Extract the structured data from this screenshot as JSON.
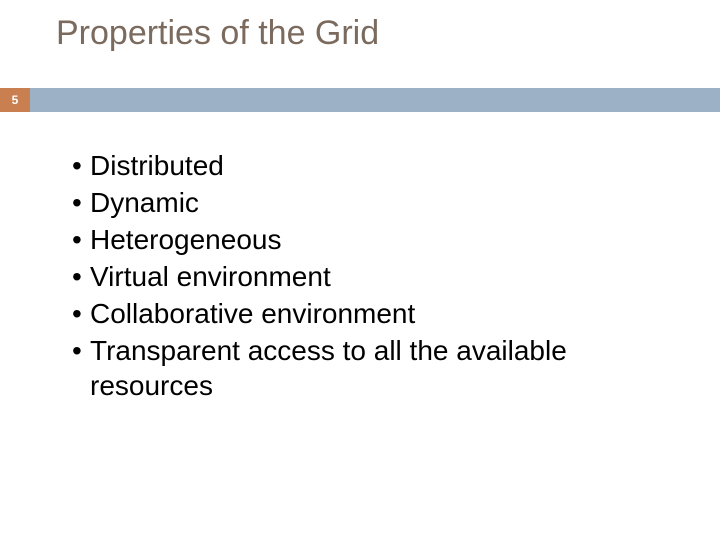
{
  "slide": {
    "title": "Properties of the Grid",
    "title_color": "#7b6a5e",
    "title_fontsize": 34,
    "page_number": "5",
    "page_box_color": "#c97f4f",
    "accent_bar_color": "#9cb0c6",
    "background_color": "#ffffff",
    "bullet_fontsize": 28,
    "bullet_color": "#000000",
    "bullets": [
      "Distributed",
      "Dynamic",
      "Heterogeneous",
      "Virtual environment",
      "Collaborative environment",
      "Transparent access to all the available resources"
    ]
  }
}
